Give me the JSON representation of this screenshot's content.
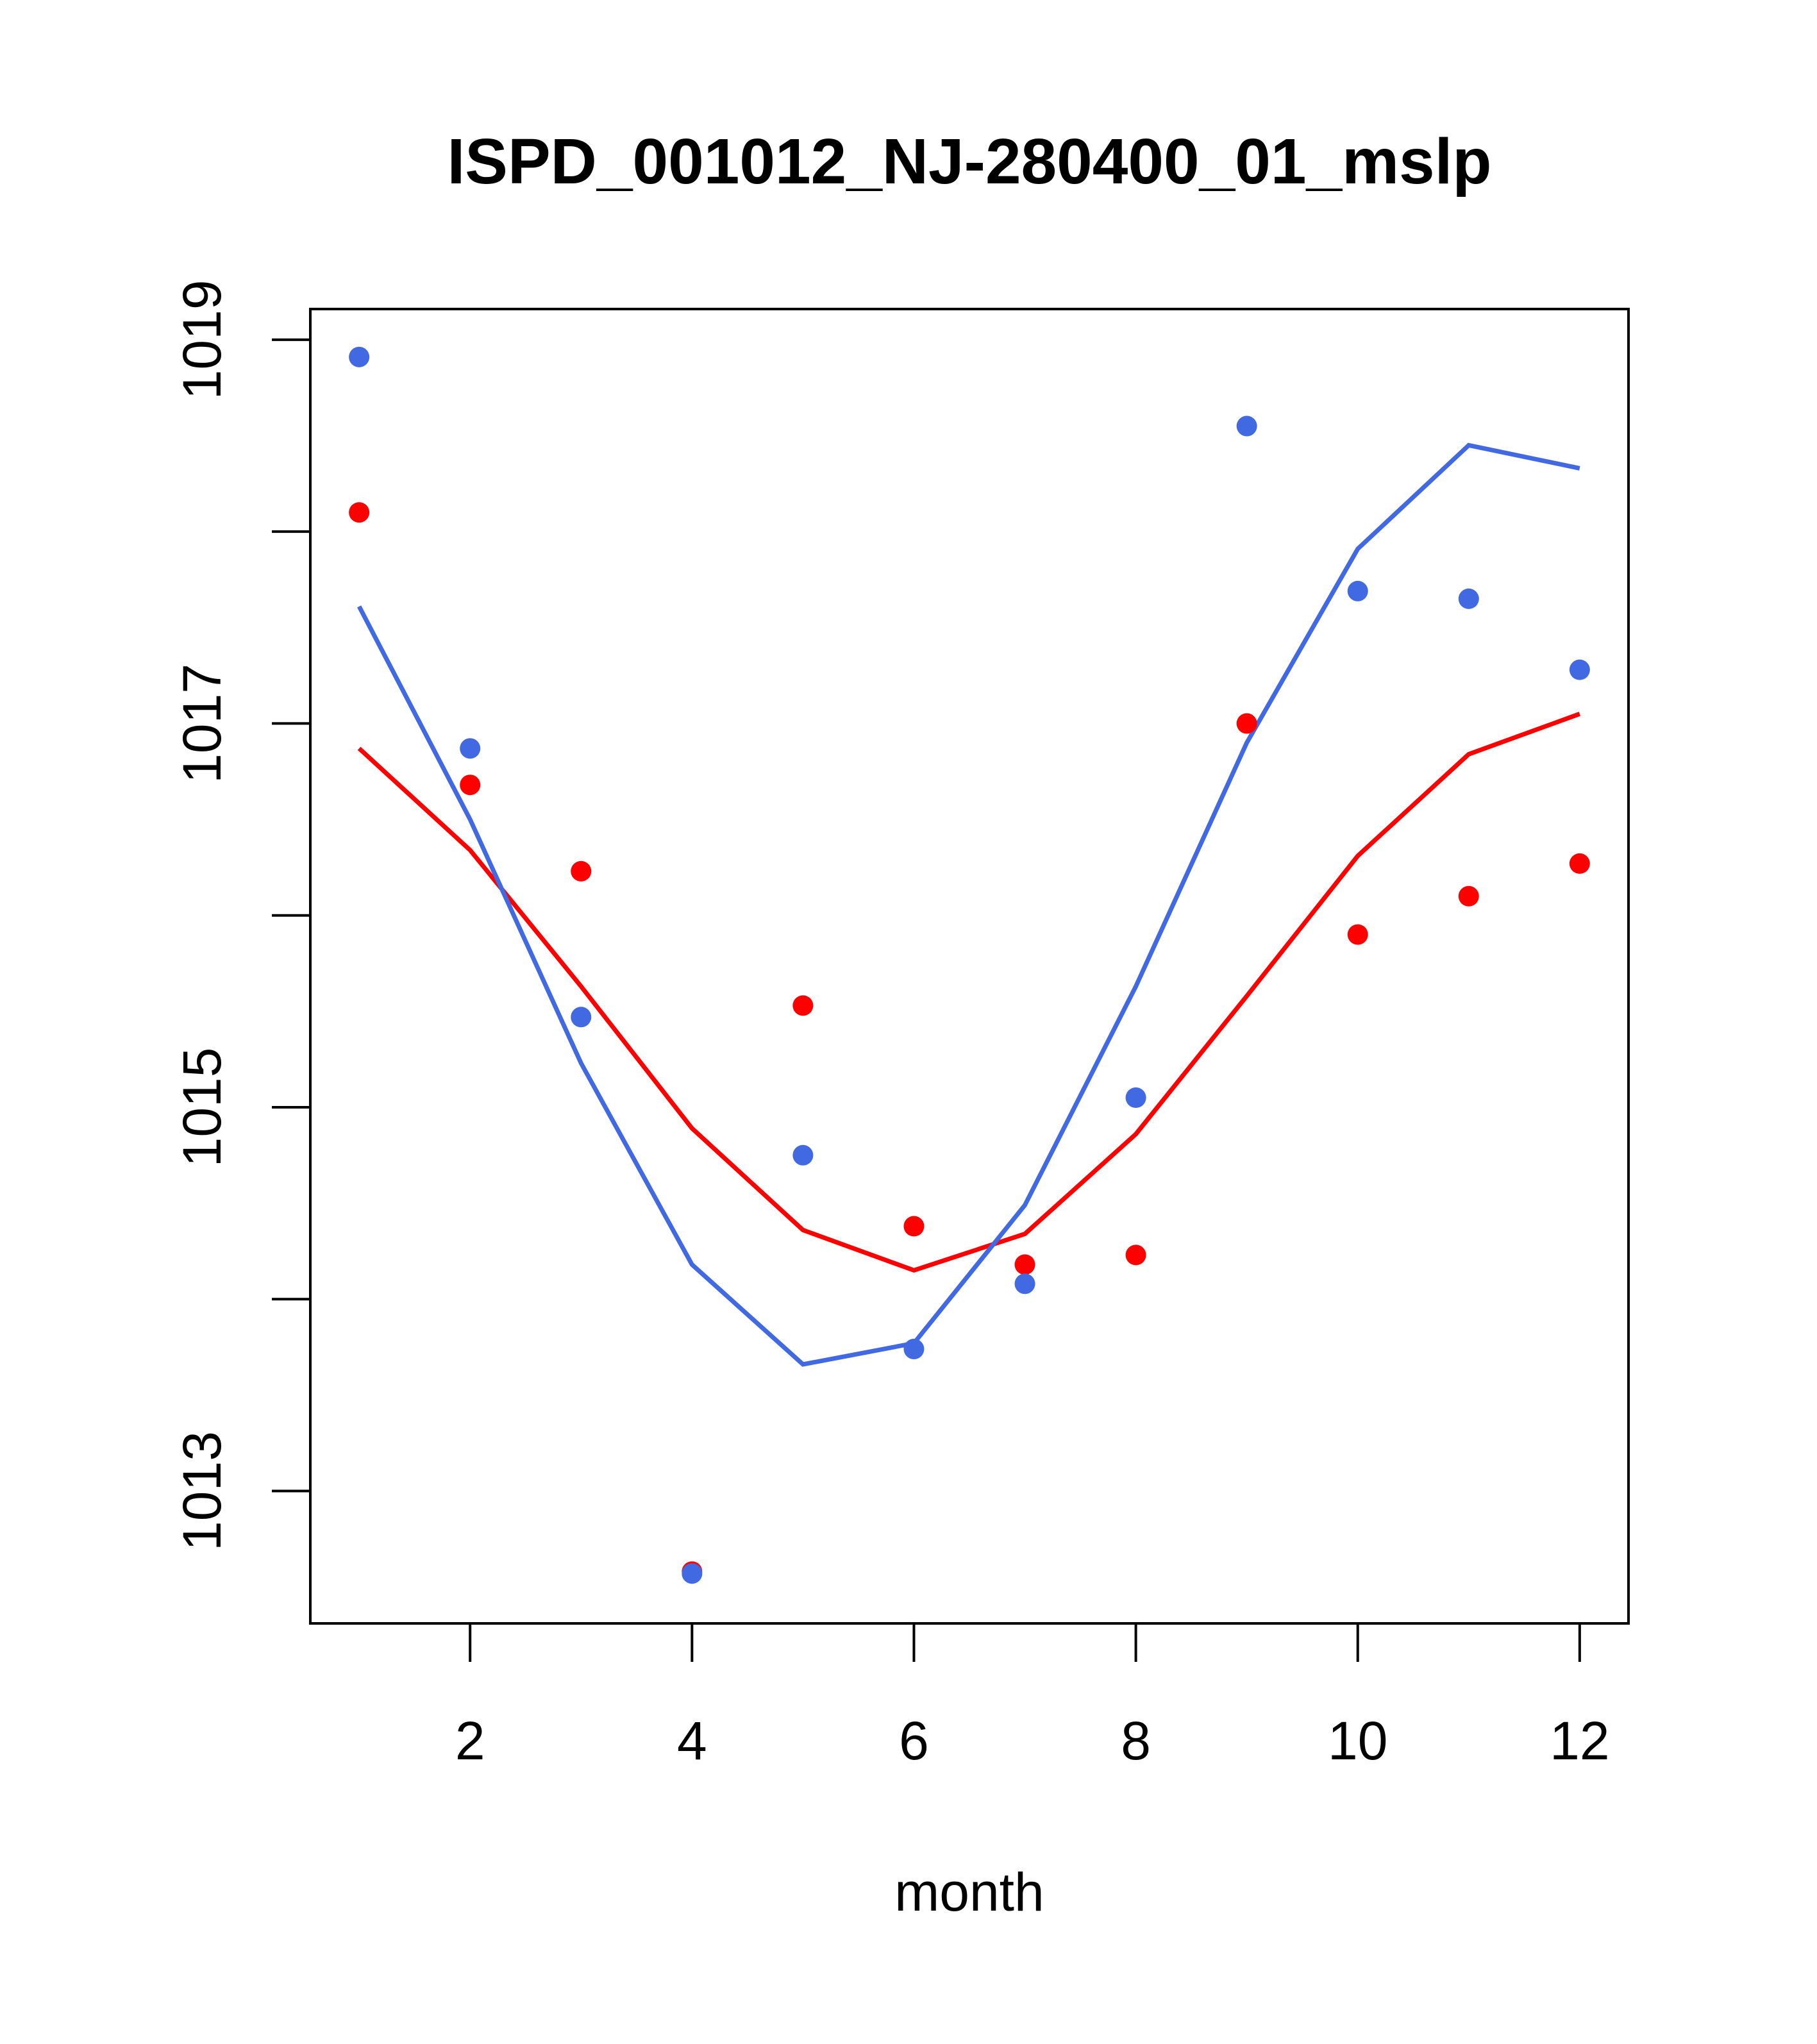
{
  "chart_data": {
    "type": "scatter",
    "title": "ISPD_001012_NJ-280400_01_mslp",
    "xlabel": "month",
    "ylabel": "",
    "xlim": [
      0.56,
      12.44
    ],
    "ylim": [
      1012.31,
      1019.16
    ],
    "x_ticks": [
      2,
      4,
      6,
      8,
      10,
      12
    ],
    "y_ticks": [
      1013,
      1014,
      1015,
      1016,
      1017,
      1018,
      1019
    ],
    "y_tick_labels": [
      "1013",
      "1015",
      "1017",
      "1019"
    ],
    "y_labeled_ticks": [
      1013,
      1015,
      1017,
      1019
    ],
    "grid": false,
    "x": [
      1,
      2,
      3,
      4,
      5,
      6,
      7,
      8,
      9,
      10,
      11,
      12
    ],
    "series": [
      {
        "name": "red points",
        "kind": "points",
        "color": "#ff0000",
        "values": [
          1018.1,
          1016.68,
          1016.23,
          1012.58,
          1015.53,
          1014.38,
          1014.18,
          1014.23,
          1017.0,
          1015.9,
          1016.1,
          1016.27
        ]
      },
      {
        "name": "blue points",
        "kind": "points",
        "color": "#4169e1",
        "values": [
          1018.91,
          1016.87,
          1015.47,
          1012.57,
          1014.75,
          1013.74,
          1014.08,
          1015.05,
          1018.55,
          1017.69,
          1017.65,
          1017.28
        ]
      },
      {
        "name": "red line",
        "kind": "line",
        "color": "#ff0000",
        "values": [
          1016.87,
          1016.34,
          1015.63,
          1014.89,
          1014.36,
          1014.15,
          1014.34,
          1014.86,
          1015.58,
          1016.31,
          1016.84,
          1017.05
        ]
      },
      {
        "name": "blue line",
        "kind": "line",
        "color": "#4169e1",
        "values": [
          1017.61,
          1016.5,
          1015.23,
          1014.18,
          1013.66,
          1013.77,
          1014.49,
          1015.63,
          1016.9,
          1017.91,
          1018.45,
          1018.33
        ]
      }
    ]
  }
}
